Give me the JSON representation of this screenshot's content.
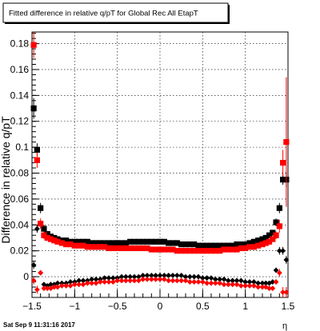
{
  "title": "Fitted difference in relative q/pT for Global Rec All EtapT",
  "footer_timestamp": "Sat Sep  9 11:31:16 2017",
  "chart_data": {
    "type": "scatter",
    "xlabel": "η",
    "ylabel": "Difference in relative q/pT",
    "xlim": [
      -1.5,
      1.5
    ],
    "ylim": [
      -0.016,
      0.189
    ],
    "xticks": [
      -1.5,
      -1,
      -0.5,
      0,
      0.5,
      1,
      1.5
    ],
    "xtick_labels": [
      "−1.5",
      "−1",
      "−0.5",
      "0",
      "0.5",
      "1",
      "1.5"
    ],
    "yticks": [
      0,
      0.02,
      0.04,
      0.06,
      0.08,
      0.1,
      0.12,
      0.14,
      0.16,
      0.18
    ],
    "ytick_labels": [
      "0",
      "0.02",
      "0.04",
      "0.06",
      "0.08",
      "0.1",
      "0.12",
      "0.14",
      "0.16",
      "0.18"
    ],
    "grid": true,
    "series": [
      {
        "marker": "square",
        "color": "#000000",
        "x": [
          -1.48,
          -1.44,
          -1.4,
          -1.36,
          -1.32,
          -1.28,
          -1.24,
          -1.2,
          -1.15,
          -1.1,
          -1.05,
          -1.0,
          -0.95,
          -0.9,
          -0.85,
          -0.8,
          -0.75,
          -0.7,
          -0.65,
          -0.6,
          -0.55,
          -0.5,
          -0.45,
          -0.4,
          -0.35,
          -0.3,
          -0.25,
          -0.2,
          -0.15,
          -0.1,
          -0.05,
          0.0,
          0.05,
          0.1,
          0.15,
          0.2,
          0.25,
          0.3,
          0.35,
          0.4,
          0.45,
          0.5,
          0.55,
          0.6,
          0.65,
          0.7,
          0.75,
          0.8,
          0.85,
          0.9,
          0.95,
          1.0,
          1.05,
          1.1,
          1.15,
          1.2,
          1.24,
          1.28,
          1.32,
          1.36,
          1.4,
          1.44,
          1.48
        ],
        "y": [
          0.13,
          0.098,
          0.053,
          0.037,
          0.033,
          0.031,
          0.03,
          0.029,
          0.028,
          0.028,
          0.027,
          0.027,
          0.027,
          0.027,
          0.027,
          0.026,
          0.026,
          0.026,
          0.026,
          0.026,
          0.026,
          0.026,
          0.026,
          0.026,
          0.027,
          0.027,
          0.027,
          0.027,
          0.027,
          0.027,
          0.027,
          0.027,
          0.027,
          0.026,
          0.026,
          0.026,
          0.025,
          0.025,
          0.025,
          0.025,
          0.024,
          0.024,
          0.024,
          0.024,
          0.024,
          0.024,
          0.024,
          0.024,
          0.024,
          0.025,
          0.025,
          0.025,
          0.026,
          0.027,
          0.028,
          0.029,
          0.03,
          0.032,
          0.034,
          0.042,
          0.053,
          0.075,
          0.075
        ],
        "yerr": [
          0.008,
          0.005,
          0.004,
          0.003,
          0.002,
          0.002,
          0.002,
          0.001,
          0.001,
          0.001,
          0.001,
          0.001,
          0.001,
          0.001,
          0.001,
          0.001,
          0.001,
          0.001,
          0.001,
          0.001,
          0.001,
          0.001,
          0.001,
          0.001,
          0.001,
          0.001,
          0.001,
          0.001,
          0.001,
          0.001,
          0.001,
          0.001,
          0.001,
          0.001,
          0.001,
          0.001,
          0.001,
          0.001,
          0.001,
          0.001,
          0.001,
          0.001,
          0.001,
          0.001,
          0.001,
          0.001,
          0.001,
          0.001,
          0.001,
          0.001,
          0.001,
          0.001,
          0.001,
          0.001,
          0.001,
          0.001,
          0.002,
          0.002,
          0.002,
          0.003,
          0.004,
          0.004,
          0.006
        ]
      },
      {
        "marker": "square",
        "color": "#ff0000",
        "x": [
          -1.48,
          -1.44,
          -1.4,
          -1.36,
          -1.32,
          -1.28,
          -1.24,
          -1.2,
          -1.15,
          -1.1,
          -1.05,
          -1.0,
          -0.95,
          -0.9,
          -0.85,
          -0.8,
          -0.75,
          -0.7,
          -0.65,
          -0.6,
          -0.55,
          -0.5,
          -0.45,
          -0.4,
          -0.35,
          -0.3,
          -0.25,
          -0.2,
          -0.15,
          -0.1,
          -0.05,
          0.0,
          0.05,
          0.1,
          0.15,
          0.2,
          0.25,
          0.3,
          0.35,
          0.4,
          0.45,
          0.5,
          0.55,
          0.6,
          0.65,
          0.7,
          0.75,
          0.8,
          0.85,
          0.9,
          0.95,
          1.0,
          1.05,
          1.1,
          1.15,
          1.2,
          1.24,
          1.28,
          1.32,
          1.36,
          1.4,
          1.44,
          1.48
        ],
        "y": [
          0.179,
          0.09,
          0.041,
          0.032,
          0.03,
          0.029,
          0.028,
          0.027,
          0.026,
          0.025,
          0.025,
          0.024,
          0.024,
          0.024,
          0.023,
          0.023,
          0.023,
          0.023,
          0.023,
          0.022,
          0.022,
          0.022,
          0.022,
          0.022,
          0.022,
          0.022,
          0.022,
          0.022,
          0.022,
          0.021,
          0.021,
          0.021,
          0.021,
          0.021,
          0.021,
          0.02,
          0.02,
          0.02,
          0.02,
          0.02,
          0.02,
          0.02,
          0.02,
          0.02,
          0.02,
          0.02,
          0.021,
          0.021,
          0.021,
          0.021,
          0.022,
          0.022,
          0.023,
          0.023,
          0.024,
          0.025,
          0.026,
          0.027,
          0.029,
          0.032,
          0.039,
          0.088,
          0.104
        ],
        "yerr": [
          0.01,
          0.006,
          0.004,
          0.003,
          0.002,
          0.002,
          0.002,
          0.001,
          0.001,
          0.001,
          0.001,
          0.001,
          0.001,
          0.001,
          0.001,
          0.001,
          0.001,
          0.001,
          0.001,
          0.001,
          0.001,
          0.001,
          0.001,
          0.001,
          0.001,
          0.001,
          0.001,
          0.001,
          0.001,
          0.001,
          0.001,
          0.001,
          0.001,
          0.001,
          0.001,
          0.001,
          0.001,
          0.001,
          0.001,
          0.001,
          0.001,
          0.001,
          0.001,
          0.001,
          0.001,
          0.001,
          0.001,
          0.001,
          0.001,
          0.001,
          0.001,
          0.001,
          0.001,
          0.001,
          0.001,
          0.001,
          0.002,
          0.002,
          0.002,
          0.003,
          0.005,
          0.01,
          0.05
        ]
      },
      {
        "marker": "diamond",
        "color": "#000000",
        "x": [
          -1.48,
          -1.44,
          -1.4,
          -1.36,
          -1.32,
          -1.28,
          -1.24,
          -1.2,
          -1.15,
          -1.1,
          -1.05,
          -1.0,
          -0.95,
          -0.9,
          -0.85,
          -0.8,
          -0.75,
          -0.7,
          -0.65,
          -0.6,
          -0.55,
          -0.5,
          -0.45,
          -0.4,
          -0.35,
          -0.3,
          -0.25,
          -0.2,
          -0.15,
          -0.1,
          -0.05,
          0.0,
          0.05,
          0.1,
          0.15,
          0.2,
          0.25,
          0.3,
          0.35,
          0.4,
          0.45,
          0.5,
          0.55,
          0.6,
          0.65,
          0.7,
          0.75,
          0.8,
          0.85,
          0.9,
          0.95,
          1.0,
          1.05,
          1.1,
          1.15,
          1.2,
          1.24,
          1.28,
          1.32,
          1.36,
          1.4,
          1.44,
          1.48
        ],
        "y": [
          0.009,
          0.037,
          0.003,
          -0.006,
          -0.007,
          -0.006,
          -0.006,
          -0.005,
          -0.005,
          -0.005,
          -0.004,
          -0.004,
          -0.003,
          -0.003,
          -0.003,
          -0.002,
          -0.002,
          -0.002,
          -0.001,
          -0.001,
          -0.001,
          -0.001,
          0.0,
          0.0,
          0.0,
          0.0,
          0.0,
          0.001,
          0.001,
          0.001,
          0.001,
          0.001,
          0.001,
          0.001,
          0.001,
          0.001,
          0.001,
          0.0,
          0.0,
          0.0,
          0.0,
          -0.001,
          -0.001,
          -0.001,
          -0.002,
          -0.002,
          -0.002,
          -0.003,
          -0.003,
          -0.003,
          -0.003,
          -0.004,
          -0.004,
          -0.004,
          -0.005,
          -0.005,
          -0.005,
          -0.005,
          -0.004,
          0.005,
          0.02,
          0.02,
          0.013
        ],
        "yerr": [
          0.003,
          0.003,
          0.002,
          0.001,
          0.001,
          0.001,
          0.001,
          0.001,
          0.001,
          0.001,
          0.001,
          0.001,
          0.001,
          0.001,
          0.001,
          0.001,
          0.001,
          0.001,
          0.001,
          0.001,
          0.001,
          0.001,
          0.001,
          0.001,
          0.001,
          0.001,
          0.001,
          0.001,
          0.001,
          0.001,
          0.001,
          0.001,
          0.001,
          0.001,
          0.001,
          0.001,
          0.001,
          0.001,
          0.001,
          0.001,
          0.001,
          0.001,
          0.001,
          0.001,
          0.001,
          0.001,
          0.001,
          0.001,
          0.001,
          0.001,
          0.001,
          0.001,
          0.001,
          0.001,
          0.001,
          0.001,
          0.001,
          0.001,
          0.001,
          0.002,
          0.003,
          0.003,
          0.003
        ]
      },
      {
        "marker": "diamond",
        "color": "#ff0000",
        "x": [
          -1.48,
          -1.44,
          -1.4,
          -1.36,
          -1.32,
          -1.28,
          -1.24,
          -1.2,
          -1.15,
          -1.1,
          -1.05,
          -1.0,
          -0.95,
          -0.9,
          -0.85,
          -0.8,
          -0.75,
          -0.7,
          -0.65,
          -0.6,
          -0.55,
          -0.5,
          -0.45,
          -0.4,
          -0.35,
          -0.3,
          -0.25,
          -0.2,
          -0.15,
          -0.1,
          -0.05,
          0.0,
          0.05,
          0.1,
          0.15,
          0.2,
          0.25,
          0.3,
          0.35,
          0.4,
          0.45,
          0.5,
          0.55,
          0.6,
          0.65,
          0.7,
          0.75,
          0.8,
          0.85,
          0.9,
          0.95,
          1.0,
          1.05,
          1.1,
          1.15,
          1.2,
          1.24,
          1.28,
          1.32,
          1.36,
          1.4,
          1.44,
          1.48
        ],
        "y": [
          -0.003,
          -0.01,
          0.003,
          -0.009,
          -0.009,
          -0.009,
          -0.008,
          -0.008,
          -0.007,
          -0.007,
          -0.007,
          -0.006,
          -0.006,
          -0.006,
          -0.005,
          -0.005,
          -0.005,
          -0.004,
          -0.004,
          -0.004,
          -0.004,
          -0.003,
          -0.003,
          -0.003,
          -0.003,
          -0.003,
          -0.003,
          -0.002,
          -0.002,
          -0.002,
          -0.002,
          -0.002,
          -0.002,
          -0.003,
          -0.003,
          -0.003,
          -0.003,
          -0.003,
          -0.004,
          -0.004,
          -0.004,
          -0.004,
          -0.005,
          -0.005,
          -0.005,
          -0.005,
          -0.006,
          -0.006,
          -0.006,
          -0.006,
          -0.007,
          -0.007,
          -0.007,
          -0.007,
          -0.008,
          -0.008,
          -0.008,
          -0.009,
          -0.009,
          -0.004,
          0.003,
          -0.012,
          -0.012
        ],
        "yerr": [
          0.003,
          0.003,
          0.002,
          0.001,
          0.001,
          0.001,
          0.001,
          0.001,
          0.001,
          0.001,
          0.001,
          0.001,
          0.001,
          0.001,
          0.001,
          0.001,
          0.001,
          0.001,
          0.001,
          0.001,
          0.001,
          0.001,
          0.001,
          0.001,
          0.001,
          0.001,
          0.001,
          0.001,
          0.001,
          0.001,
          0.001,
          0.001,
          0.001,
          0.001,
          0.001,
          0.001,
          0.001,
          0.001,
          0.001,
          0.001,
          0.001,
          0.001,
          0.001,
          0.001,
          0.001,
          0.001,
          0.001,
          0.001,
          0.001,
          0.001,
          0.001,
          0.001,
          0.001,
          0.001,
          0.001,
          0.001,
          0.001,
          0.001,
          0.001,
          0.002,
          0.003,
          0.004,
          0.004
        ]
      }
    ]
  }
}
